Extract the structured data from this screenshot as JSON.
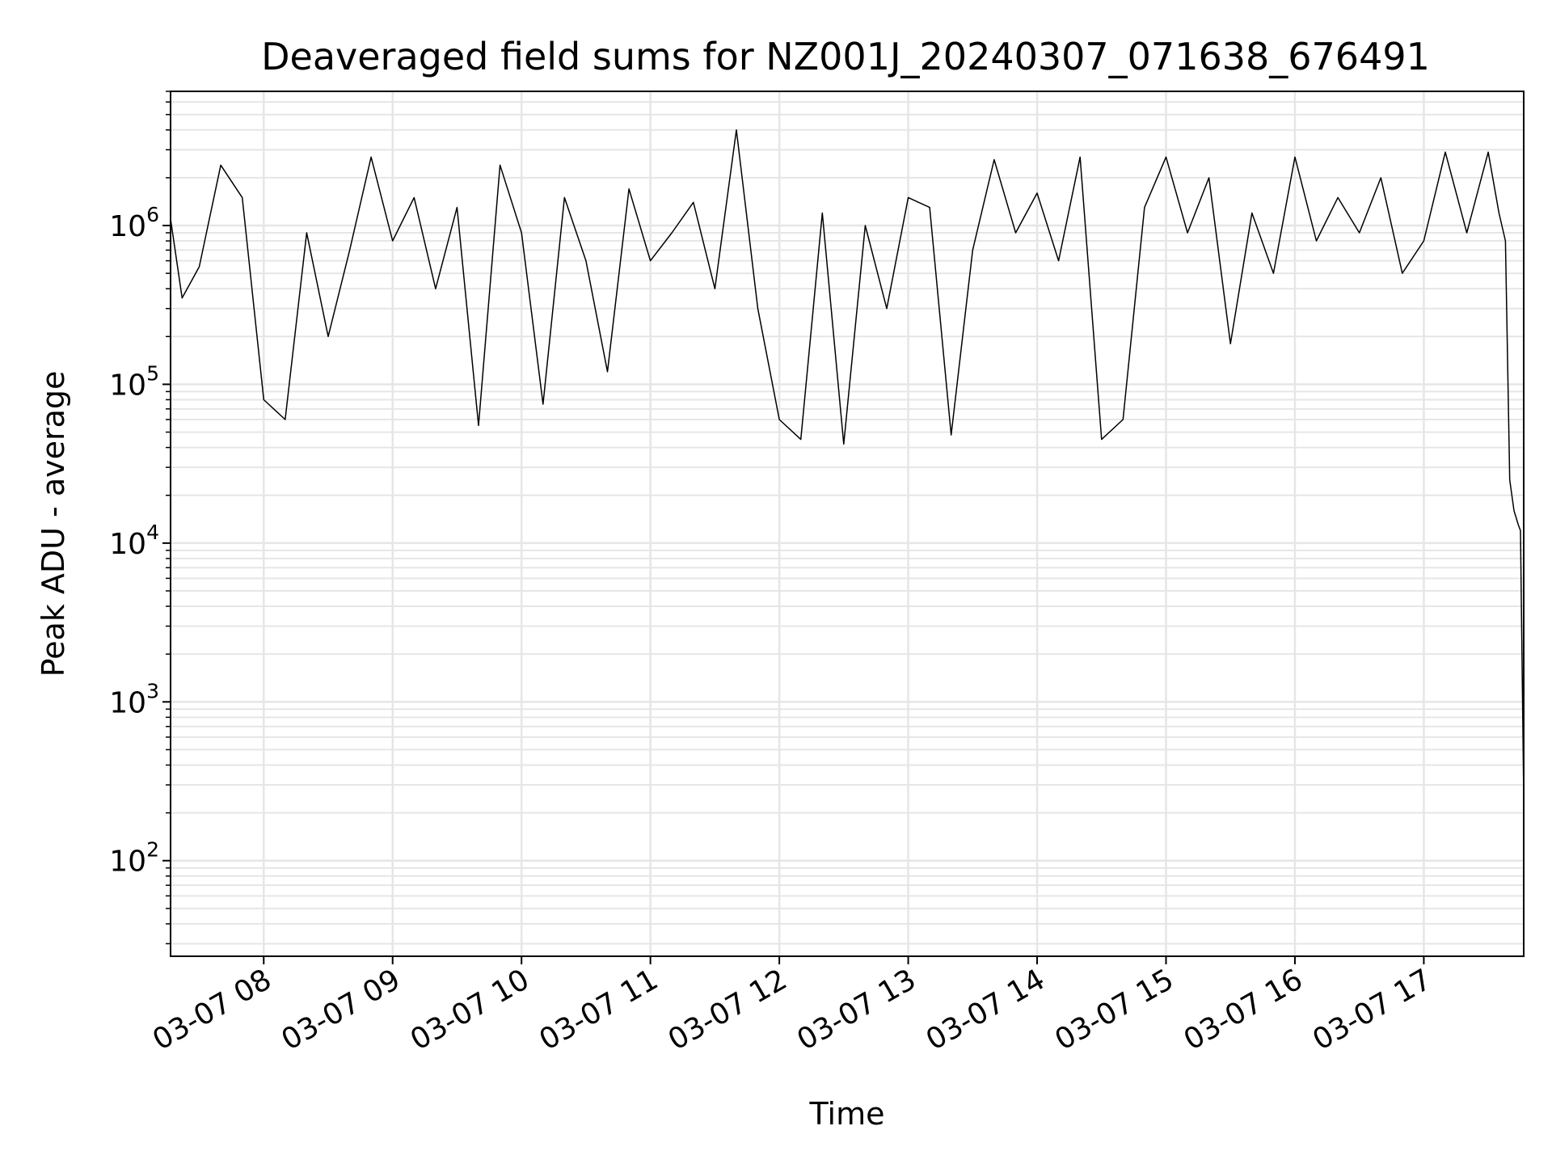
{
  "chart_data": {
    "type": "line",
    "title": "Deaveraged field sums for NZ001J_20240307_071638_676491",
    "xlabel": "Time",
    "ylabel": "Peak ADU - average",
    "y_scale": "log",
    "ylim": [
      25,
      7000000
    ],
    "x_range": [
      "2024-03-07 07:16:38",
      "2024-03-07 17:46:30"
    ],
    "x_ticks": [
      {
        "at": "2024-03-07 08:00",
        "label": "03-07 08"
      },
      {
        "at": "2024-03-07 09:00",
        "label": "03-07 09"
      },
      {
        "at": "2024-03-07 10:00",
        "label": "03-07 10"
      },
      {
        "at": "2024-03-07 11:00",
        "label": "03-07 11"
      },
      {
        "at": "2024-03-07 12:00",
        "label": "03-07 12"
      },
      {
        "at": "2024-03-07 13:00",
        "label": "03-07 13"
      },
      {
        "at": "2024-03-07 14:00",
        "label": "03-07 14"
      },
      {
        "at": "2024-03-07 15:00",
        "label": "03-07 15"
      },
      {
        "at": "2024-03-07 16:00",
        "label": "03-07 16"
      },
      {
        "at": "2024-03-07 17:00",
        "label": "03-07 17"
      }
    ],
    "y_ticks": [
      {
        "value": 100,
        "base": "10",
        "exp": "2"
      },
      {
        "value": 1000,
        "base": "10",
        "exp": "3"
      },
      {
        "value": 10000,
        "base": "10",
        "exp": "4"
      },
      {
        "value": 100000,
        "base": "10",
        "exp": "5"
      },
      {
        "value": 1000000,
        "base": "10",
        "exp": "6"
      }
    ],
    "grid": true,
    "line_color": "#000000",
    "grid_color": "#e6e6e6",
    "series": [
      {
        "x": [
          "2024-03-07 07:16:38",
          "2024-03-07 07:22",
          "2024-03-07 07:30",
          "2024-03-07 07:40",
          "2024-03-07 07:50",
          "2024-03-07 08:00",
          "2024-03-07 08:10",
          "2024-03-07 08:20",
          "2024-03-07 08:30",
          "2024-03-07 08:40",
          "2024-03-07 08:50",
          "2024-03-07 09:00",
          "2024-03-07 09:10",
          "2024-03-07 09:20",
          "2024-03-07 09:30",
          "2024-03-07 09:40",
          "2024-03-07 09:50",
          "2024-03-07 10:00",
          "2024-03-07 10:10",
          "2024-03-07 10:20",
          "2024-03-07 10:30",
          "2024-03-07 10:40",
          "2024-03-07 10:50",
          "2024-03-07 11:00",
          "2024-03-07 11:10",
          "2024-03-07 11:20",
          "2024-03-07 11:30",
          "2024-03-07 11:40",
          "2024-03-07 11:50",
          "2024-03-07 12:00",
          "2024-03-07 12:10",
          "2024-03-07 12:20",
          "2024-03-07 12:30",
          "2024-03-07 12:40",
          "2024-03-07 12:50",
          "2024-03-07 13:00",
          "2024-03-07 13:10",
          "2024-03-07 13:20",
          "2024-03-07 13:30",
          "2024-03-07 13:40",
          "2024-03-07 13:50",
          "2024-03-07 14:00",
          "2024-03-07 14:10",
          "2024-03-07 14:20",
          "2024-03-07 14:30",
          "2024-03-07 14:40",
          "2024-03-07 14:50",
          "2024-03-07 15:00",
          "2024-03-07 15:10",
          "2024-03-07 15:20",
          "2024-03-07 15:30",
          "2024-03-07 15:40",
          "2024-03-07 15:50",
          "2024-03-07 16:00",
          "2024-03-07 16:10",
          "2024-03-07 16:20",
          "2024-03-07 16:30",
          "2024-03-07 16:40",
          "2024-03-07 16:50",
          "2024-03-07 17:00",
          "2024-03-07 17:10",
          "2024-03-07 17:20",
          "2024-03-07 17:30",
          "2024-03-07 17:35",
          "2024-03-07 17:38",
          "2024-03-07 17:40",
          "2024-03-07 17:42",
          "2024-03-07 17:44",
          "2024-03-07 17:45",
          "2024-03-07 17:46:30"
        ],
        "y": [
          1100000,
          350000,
          550000,
          2400000,
          1500000,
          80000,
          60000,
          900000,
          200000,
          700000,
          2700000,
          800000,
          1500000,
          400000,
          1300000,
          55000,
          2400000,
          900000,
          75000,
          1500000,
          600000,
          120000,
          1700000,
          600000,
          900000,
          1400000,
          400000,
          4000000,
          300000,
          60000,
          45000,
          1200000,
          42000,
          1000000,
          300000,
          1500000,
          1300000,
          48000,
          700000,
          2600000,
          900000,
          1600000,
          600000,
          2700000,
          45000,
          60000,
          1300000,
          2700000,
          900000,
          2000000,
          180000,
          1200000,
          500000,
          2700000,
          800000,
          1500000,
          900000,
          2000000,
          500000,
          800000,
          2900000,
          900000,
          2900000,
          1200000,
          800000,
          25000,
          16000,
          13000,
          12000,
          250
        ]
      }
    ]
  }
}
